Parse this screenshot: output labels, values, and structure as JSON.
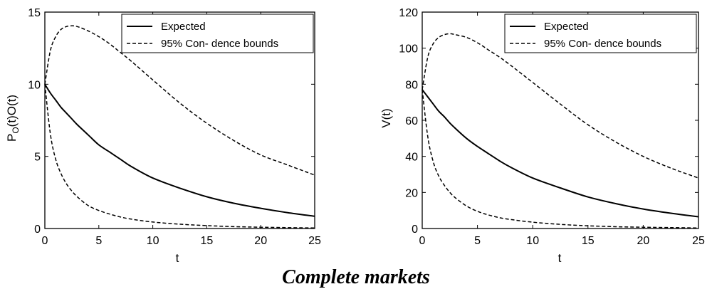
{
  "caption": "Complete markets",
  "chart_data": [
    {
      "type": "line",
      "title": "",
      "xlabel": "t",
      "ylabel": "P_O(t)O(t)",
      "ylabel_main": "P",
      "ylabel_sub": "O",
      "ylabel_rest": "(t)O(t)",
      "xlim": [
        0,
        25
      ],
      "ylim": [
        0,
        15
      ],
      "xticks": [
        0,
        5,
        10,
        15,
        20,
        25
      ],
      "yticks": [
        0,
        5,
        10,
        15
      ],
      "grid": false,
      "legend_position": "top-right",
      "x": [
        0,
        0.5,
        1,
        1.5,
        2,
        2.5,
        3,
        4,
        5,
        6,
        7,
        8,
        10,
        12.5,
        15,
        17.5,
        20,
        22.5,
        25
      ],
      "series": [
        {
          "name": "Expected",
          "style": "solid",
          "values": [
            10,
            9.4,
            8.9,
            8.4,
            8.0,
            7.6,
            7.2,
            6.5,
            5.8,
            5.3,
            4.8,
            4.3,
            3.5,
            2.8,
            2.2,
            1.75,
            1.4,
            1.1,
            0.85
          ]
        },
        {
          "name": "95% Con- dence bounds",
          "style": "dashed",
          "values": [
            10,
            12.3,
            13.3,
            13.8,
            14.0,
            14.05,
            14.0,
            13.7,
            13.3,
            12.8,
            12.2,
            11.6,
            10.3,
            8.7,
            7.3,
            6.1,
            5.1,
            4.4,
            3.7
          ]
        },
        {
          "name": "",
          "style": "dashed",
          "values": [
            10,
            6.6,
            4.8,
            3.8,
            3.1,
            2.6,
            2.2,
            1.6,
            1.25,
            1.0,
            0.8,
            0.65,
            0.45,
            0.3,
            0.2,
            0.13,
            0.09,
            0.06,
            0.04
          ]
        }
      ]
    },
    {
      "type": "line",
      "title": "",
      "xlabel": "t",
      "ylabel": "V(t)",
      "xlim": [
        0,
        25
      ],
      "ylim": [
        0,
        120
      ],
      "xticks": [
        0,
        5,
        10,
        15,
        20,
        25
      ],
      "yticks": [
        0,
        20,
        40,
        60,
        80,
        100,
        120
      ],
      "grid": false,
      "legend_position": "top-right",
      "x": [
        0,
        0.5,
        1,
        1.5,
        2,
        2.5,
        3,
        4,
        5,
        6,
        7,
        8,
        10,
        12.5,
        15,
        17.5,
        20,
        22.5,
        25
      ],
      "series": [
        {
          "name": "Expected",
          "style": "solid",
          "values": [
            77,
            73,
            69,
            65,
            62,
            58.5,
            55.5,
            50,
            45.5,
            41.5,
            37.5,
            34,
            28,
            22.5,
            17.5,
            13.8,
            10.8,
            8.5,
            6.5
          ]
        },
        {
          "name": "95% Con- dence bounds",
          "style": "dashed",
          "values": [
            77,
            95,
            102.5,
            106,
            107.5,
            108,
            107.5,
            106,
            103,
            99,
            95,
            90.5,
            81,
            69,
            57.5,
            48,
            40,
            33.5,
            28
          ]
        },
        {
          "name": "",
          "style": "dashed",
          "values": [
            77,
            51,
            37,
            29,
            24,
            20,
            17,
            12.5,
            9.5,
            7.5,
            6.0,
            5.0,
            3.5,
            2.3,
            1.5,
            1.0,
            0.7,
            0.5,
            0.3
          ]
        }
      ]
    }
  ]
}
